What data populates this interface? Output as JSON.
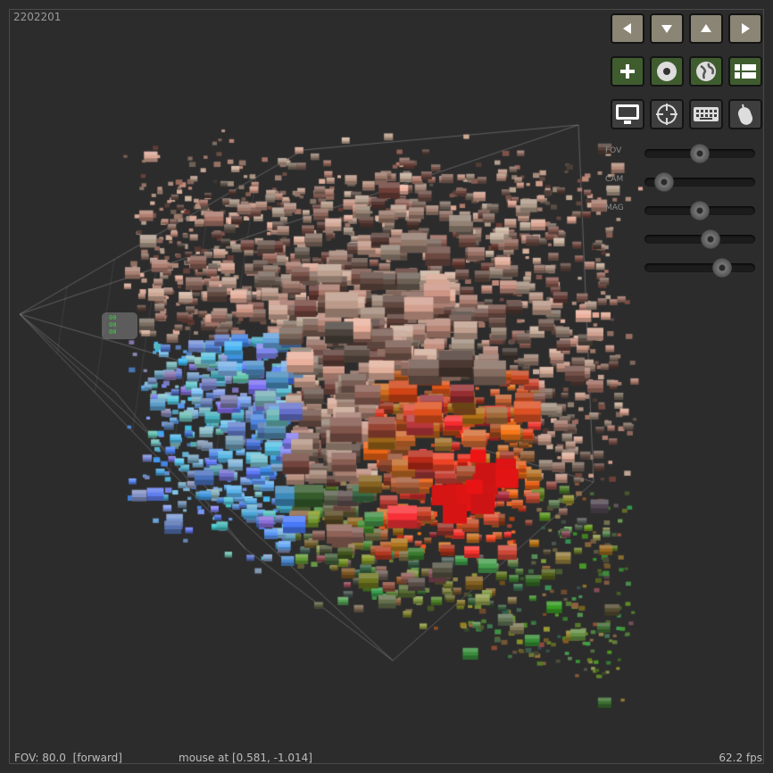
{
  "viewer": {
    "frame_id": "2202201",
    "status": {
      "fov": "FOV: 80.0",
      "mode": "[forward]",
      "mouse": "mouse at [0.581, -1.014]",
      "fps": "62.2 fps"
    }
  },
  "toolbar": {
    "rows": [
      [
        {
          "name": "left-arrow-button",
          "icon": "arrow-left-icon",
          "style": "arrow"
        },
        {
          "name": "down-arrow-button",
          "icon": "arrow-down-icon",
          "style": "arrow"
        },
        {
          "name": "up-arrow-button",
          "icon": "arrow-up-icon",
          "style": "arrow"
        },
        {
          "name": "right-arrow-button",
          "icon": "arrow-right-icon",
          "style": "arrow"
        }
      ],
      [
        {
          "name": "add-button",
          "icon": "plus-icon",
          "style": "green"
        },
        {
          "name": "disc-button",
          "icon": "disc-icon",
          "style": "green"
        },
        {
          "name": "globe-button",
          "icon": "globe-icon",
          "style": "green"
        },
        {
          "name": "list-view-button",
          "icon": "list-icon",
          "style": "green"
        }
      ],
      [
        {
          "name": "monitor-button",
          "icon": "monitor-icon",
          "style": "dark"
        },
        {
          "name": "crosshair-button",
          "icon": "crosshair-icon",
          "style": "dark"
        },
        {
          "name": "keyboard-button",
          "icon": "keyboard-icon",
          "style": "dark"
        },
        {
          "name": "mouse-button",
          "icon": "mouse-icon",
          "style": "dark"
        }
      ]
    ]
  },
  "sliders": [
    {
      "label": "FOV",
      "value": 0.5
    },
    {
      "label": "CAM",
      "value": 0.18
    },
    {
      "label": "MAG",
      "value": 0.5
    },
    {
      "label": "",
      "value": 0.6
    },
    {
      "label": "",
      "value": 0.7
    }
  ],
  "pin_badge": {
    "lines": [
      "00",
      "00",
      "00"
    ]
  },
  "colors": {
    "background": "#2c2c2c",
    "arrow_button": "#8a8574",
    "green_button": "#3f5c2f",
    "dark_button": "#3e3e3e",
    "pin_text": "#3bd14a",
    "grid_line": "#7a7a7a"
  }
}
